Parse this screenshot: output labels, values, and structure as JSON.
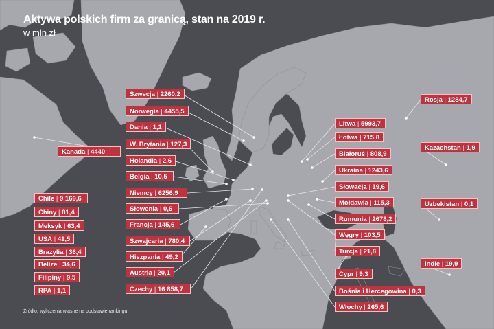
{
  "title": "Aktywa polskich firm za granicą, stan na 2019 r.",
  "subtitle": "w mln zł",
  "source": "Źródło: wyliczenia własne na podstawie rankingu",
  "colors": {
    "land": "#a6a8ae",
    "sea": "#4a4c52",
    "label_bg": "#c0323e",
    "label_border": "#f0c3c7"
  },
  "labels": [
    {
      "id": "szwecja",
      "text": "Szwecja",
      "value": "2260,2"
    },
    {
      "id": "norwegia",
      "text": "Norwegia",
      "value": "4455,5"
    },
    {
      "id": "dania",
      "text": "Dania",
      "value": "1,1"
    },
    {
      "id": "wbrytania",
      "text": "W. Brytania",
      "value": "127,3"
    },
    {
      "id": "holandia",
      "text": "Holandia",
      "value": "2,6"
    },
    {
      "id": "belgia",
      "text": "Belgia",
      "value": "10,5"
    },
    {
      "id": "niemcy",
      "text": "Niemcy",
      "value": "6256,9"
    },
    {
      "id": "slowenia",
      "text": "Słowenia",
      "value": "0,6"
    },
    {
      "id": "francja",
      "text": "Francja",
      "value": "145,6"
    },
    {
      "id": "szwajcaria",
      "text": "Szwajcaria",
      "value": "780,4"
    },
    {
      "id": "hiszpania",
      "text": "Hiszpania",
      "value": "49,2"
    },
    {
      "id": "austria",
      "text": "Austria",
      "value": "20,1"
    },
    {
      "id": "czechy",
      "text": "Czechy",
      "value": "16 858,7"
    },
    {
      "id": "kanada",
      "text": "Kanada",
      "value": "4440"
    },
    {
      "id": "chile",
      "text": "Chile",
      "value": "9 169,6"
    },
    {
      "id": "chiny",
      "text": "Chiny",
      "value": "81,4"
    },
    {
      "id": "meksyk",
      "text": "Meksyk",
      "value": "63,4"
    },
    {
      "id": "usa",
      "text": "USA",
      "value": "41,5"
    },
    {
      "id": "brazylia",
      "text": "Brazylia",
      "value": "36,4"
    },
    {
      "id": "belize",
      "text": "Belize",
      "value": "34,6"
    },
    {
      "id": "filipiny",
      "text": "Filipiny",
      "value": "9,5"
    },
    {
      "id": "rpa",
      "text": "RPA",
      "value": "1,1"
    },
    {
      "id": "rosja",
      "text": "Rosja",
      "value": "1284,7"
    },
    {
      "id": "litwa",
      "text": "Litwa",
      "value": "5993,7"
    },
    {
      "id": "lotwa",
      "text": "Łotwa",
      "value": "715,8"
    },
    {
      "id": "bialorus",
      "text": "Białoruś",
      "value": "808,9"
    },
    {
      "id": "ukraina",
      "text": "Ukraina",
      "value": "1243,6"
    },
    {
      "id": "slowacja",
      "text": "Słowacja",
      "value": "19,6"
    },
    {
      "id": "moldawia",
      "text": "Mołdawia",
      "value": "115,3"
    },
    {
      "id": "rumunia",
      "text": "Rumunia",
      "value": "2678,2"
    },
    {
      "id": "wegry",
      "text": "Węgry",
      "value": "103,5"
    },
    {
      "id": "turcja",
      "text": "Turcja",
      "value": "21,8"
    },
    {
      "id": "cypr",
      "text": "Cypr",
      "value": "9,3"
    },
    {
      "id": "bosnia",
      "text": "Bośnia i Hercegowina",
      "value": "0,3"
    },
    {
      "id": "wlochy",
      "text": "Włochy",
      "value": "265,6"
    },
    {
      "id": "kazachstan",
      "text": "Kazachstan",
      "value": "1,9"
    },
    {
      "id": "uzbekistan",
      "text": "Uzbekistan",
      "value": "0,1"
    },
    {
      "id": "indie",
      "text": "Indie",
      "value": "19,9"
    }
  ]
}
